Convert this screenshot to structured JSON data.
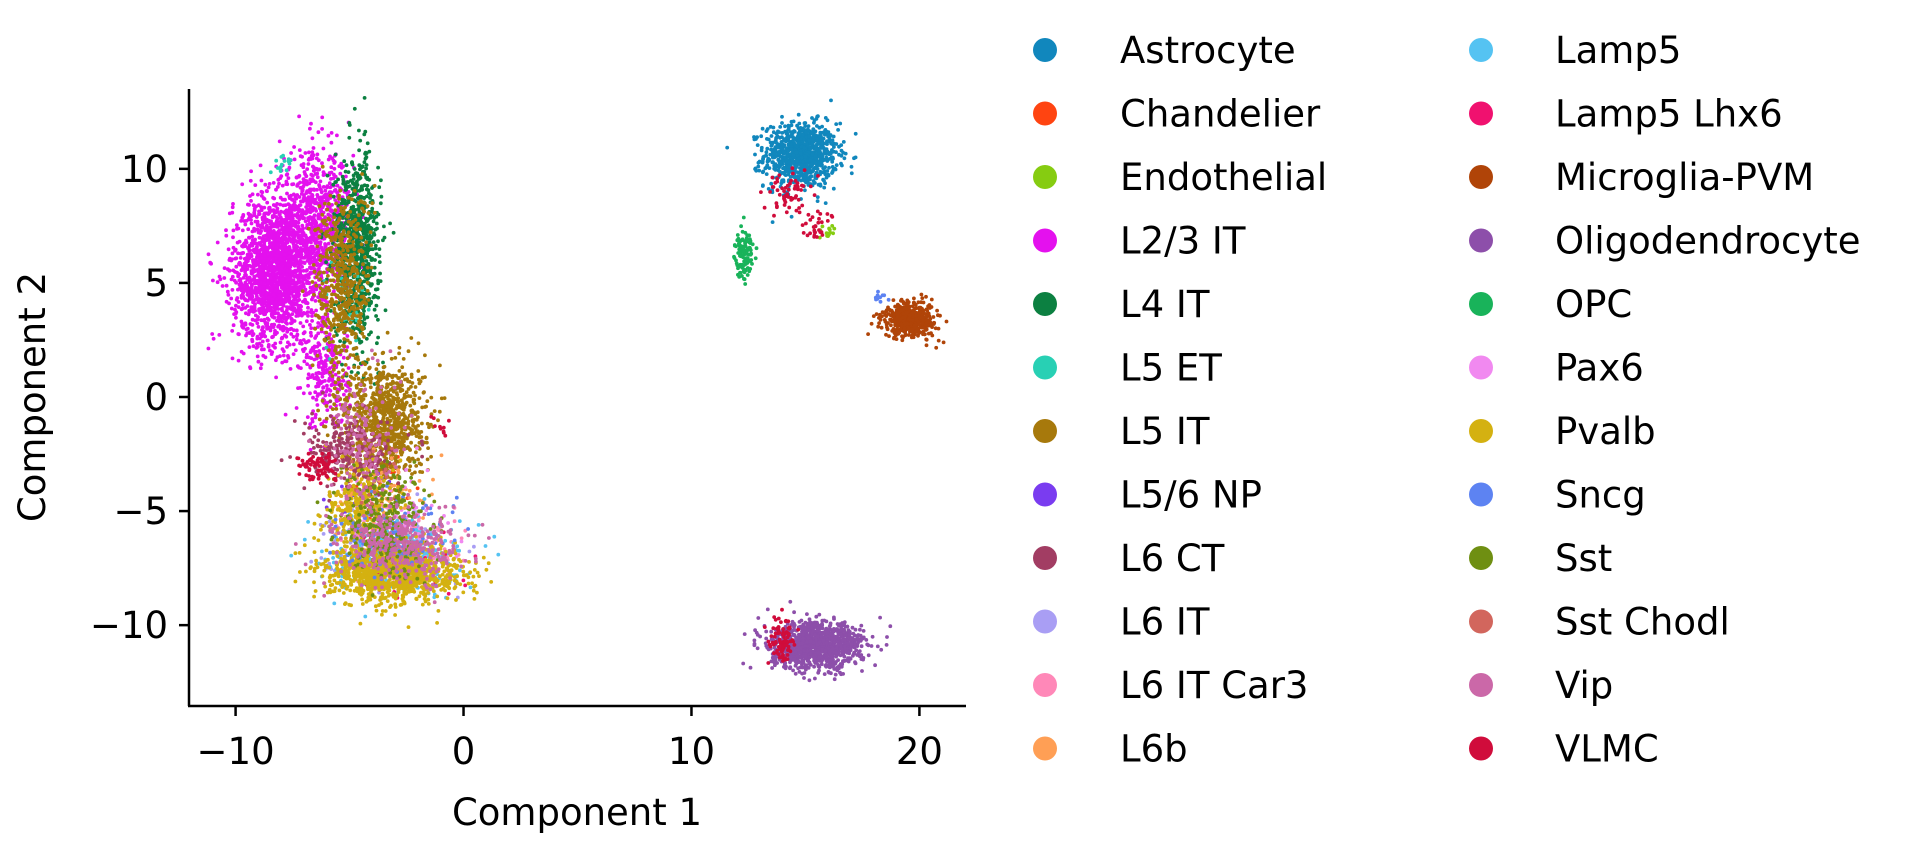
{
  "chart_data": {
    "type": "scatter",
    "xlabel": "Component 1",
    "ylabel": "Component 2",
    "xlim": [
      -12,
      22
    ],
    "ylim": [
      -13.5,
      13.5
    ],
    "x_ticks": [
      -10,
      0,
      10,
      20
    ],
    "y_ticks": [
      -10,
      -5,
      0,
      5,
      10
    ],
    "grid": false,
    "legend_position": "right, two columns",
    "series": [
      {
        "name": "Astrocyte",
        "color": "#1187bd",
        "clusters": [
          {
            "cx": 14.8,
            "cy": 10.6,
            "sx": 0.8,
            "sy": 0.7,
            "n": 900
          }
        ]
      },
      {
        "name": "Chandelier",
        "color": "#ff4411",
        "clusters": [
          {
            "cx": -3.5,
            "cy": -4.0,
            "sx": 0.8,
            "sy": 1.0,
            "n": 40
          }
        ]
      },
      {
        "name": "Endothelial",
        "color": "#86cc11",
        "clusters": [
          {
            "cx": 16.0,
            "cy": 7.3,
            "sx": 0.2,
            "sy": 0.2,
            "n": 15
          }
        ]
      },
      {
        "name": "L2/3 IT",
        "color": "#e411ee",
        "clusters": [
          {
            "cx": -8.3,
            "cy": 5.5,
            "sx": 0.9,
            "sy": 1.6,
            "n": 1800
          },
          {
            "cx": -6.5,
            "cy": 7.5,
            "sx": 0.8,
            "sy": 1.6,
            "n": 800
          },
          {
            "cx": -6.0,
            "cy": 1.0,
            "sx": 0.5,
            "sy": 1.2,
            "n": 250
          }
        ]
      },
      {
        "name": "L4 IT",
        "color": "#0c8041",
        "clusters": [
          {
            "cx": -4.7,
            "cy": 6.5,
            "sx": 0.5,
            "sy": 2.0,
            "n": 800
          }
        ]
      },
      {
        "name": "L5 ET",
        "color": "#28d0b4",
        "clusters": [
          {
            "cx": -8.0,
            "cy": 10.2,
            "sx": 0.3,
            "sy": 0.3,
            "n": 15
          },
          {
            "cx": -5.0,
            "cy": 4.0,
            "sx": 0.5,
            "sy": 1.0,
            "n": 30
          }
        ]
      },
      {
        "name": "L5 IT",
        "color": "#a7790c",
        "clusters": [
          {
            "cx": -3.5,
            "cy": -1.0,
            "sx": 0.9,
            "sy": 1.3,
            "n": 900
          },
          {
            "cx": -5.3,
            "cy": 5.0,
            "sx": 0.6,
            "sy": 2.0,
            "n": 500
          }
        ]
      },
      {
        "name": "L5/6 NP",
        "color": "#7a3cf0",
        "clusters": [
          {
            "cx": -4.5,
            "cy": -4.5,
            "sx": 0.8,
            "sy": 0.8,
            "n": 30
          }
        ]
      },
      {
        "name": "L6 CT",
        "color": "#a23d63",
        "clusters": [
          {
            "cx": -5.0,
            "cy": -2.5,
            "sx": 1.0,
            "sy": 0.8,
            "n": 250
          }
        ]
      },
      {
        "name": "L6 IT",
        "color": "#a99ef4",
        "clusters": [
          {
            "cx": -3.5,
            "cy": -6.5,
            "sx": 1.2,
            "sy": 0.8,
            "n": 200
          }
        ]
      },
      {
        "name": "L6 IT Car3",
        "color": "#ff88b8",
        "clusters": [
          {
            "cx": -2.5,
            "cy": -6.8,
            "sx": 1.3,
            "sy": 0.7,
            "n": 150
          }
        ]
      },
      {
        "name": "L6b",
        "color": "#ff9f55",
        "clusters": [
          {
            "cx": -3.8,
            "cy": -4.5,
            "sx": 1.0,
            "sy": 1.0,
            "n": 100
          }
        ]
      },
      {
        "name": "Lamp5",
        "color": "#55c3f2",
        "clusters": [
          {
            "cx": -3.0,
            "cy": -7.0,
            "sx": 1.4,
            "sy": 0.8,
            "n": 300
          }
        ]
      },
      {
        "name": "Lamp5 Lhx6",
        "color": "#f0116f",
        "clusters": [
          {
            "cx": -2.5,
            "cy": -7.5,
            "sx": 1.2,
            "sy": 0.6,
            "n": 60
          }
        ]
      },
      {
        "name": "Microglia-PVM",
        "color": "#b04408",
        "clusters": [
          {
            "cx": 19.6,
            "cy": 3.4,
            "sx": 0.6,
            "sy": 0.4,
            "n": 450
          }
        ]
      },
      {
        "name": "Oligodendrocyte",
        "color": "#8d4faa",
        "clusters": [
          {
            "cx": 15.5,
            "cy": -10.9,
            "sx": 1.0,
            "sy": 0.5,
            "n": 1100
          }
        ]
      },
      {
        "name": "OPC",
        "color": "#19b35a",
        "clusters": [
          {
            "cx": 12.3,
            "cy": 6.3,
            "sx": 0.2,
            "sy": 0.5,
            "n": 120
          }
        ]
      },
      {
        "name": "Pax6",
        "color": "#f189f0",
        "clusters": [
          {
            "cx": -3.0,
            "cy": -5.5,
            "sx": 1.2,
            "sy": 1.0,
            "n": 80
          }
        ]
      },
      {
        "name": "Pvalb",
        "color": "#d4b111",
        "clusters": [
          {
            "cx": -3.0,
            "cy": -7.7,
            "sx": 1.4,
            "sy": 0.6,
            "n": 1200
          },
          {
            "cx": -4.5,
            "cy": -5.0,
            "sx": 0.8,
            "sy": 1.0,
            "n": 300
          }
        ]
      },
      {
        "name": "Sncg",
        "color": "#5d83f2",
        "clusters": [
          {
            "cx": -3.2,
            "cy": -6.3,
            "sx": 1.2,
            "sy": 0.8,
            "n": 120
          },
          {
            "cx": 18.3,
            "cy": 4.4,
            "sx": 0.2,
            "sy": 0.2,
            "n": 10
          }
        ]
      },
      {
        "name": "Sst",
        "color": "#6f8f12",
        "clusters": [
          {
            "cx": -3.5,
            "cy": -5.5,
            "sx": 1.0,
            "sy": 1.2,
            "n": 300
          }
        ]
      },
      {
        "name": "Sst Chodl",
        "color": "#d2665d",
        "clusters": [
          {
            "cx": -4.0,
            "cy": -3.5,
            "sx": 0.6,
            "sy": 0.6,
            "n": 20
          }
        ]
      },
      {
        "name": "Vip",
        "color": "#cb68a8",
        "clusters": [
          {
            "cx": -2.8,
            "cy": -6.5,
            "sx": 1.3,
            "sy": 0.8,
            "n": 350
          },
          {
            "cx": -4.5,
            "cy": -2.0,
            "sx": 0.8,
            "sy": 1.5,
            "n": 150
          }
        ]
      },
      {
        "name": "VLMC",
        "color": "#d00c3b",
        "clusters": [
          {
            "cx": 14.2,
            "cy": 9.0,
            "sx": 0.5,
            "sy": 0.5,
            "n": 60
          },
          {
            "cx": 15.5,
            "cy": 7.6,
            "sx": 0.3,
            "sy": 0.3,
            "n": 30
          },
          {
            "cx": 14.0,
            "cy": -10.7,
            "sx": 0.3,
            "sy": 0.5,
            "n": 90
          },
          {
            "cx": -6.3,
            "cy": -3.0,
            "sx": 0.4,
            "sy": 0.3,
            "n": 80
          },
          {
            "cx": -1.0,
            "cy": -1.2,
            "sx": 0.2,
            "sy": 0.2,
            "n": 10
          }
        ]
      }
    ]
  }
}
